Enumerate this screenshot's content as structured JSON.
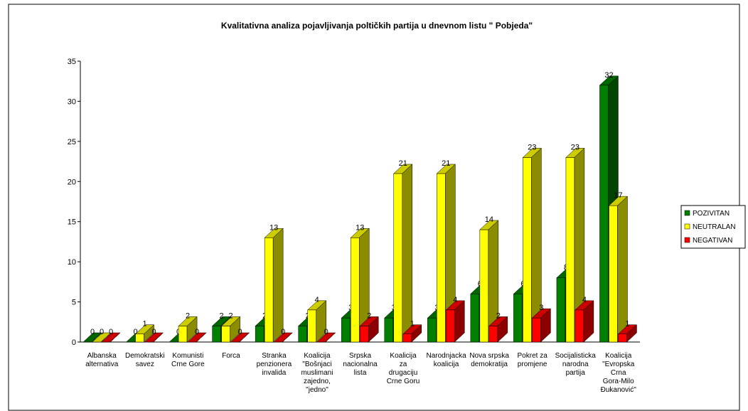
{
  "chart_data": {
    "type": "bar3d",
    "title": "Kvalitativna analiza pojavljivanja poltičkih partija u dnevnom listu \" Pobjeda\"",
    "categories": [
      "Albanska alternativa",
      "Demokratski savez",
      "Komunisti Crne Gore",
      "Forca",
      "Stranka penzionera invalida",
      "Koalicija \"Bošnjaci muslimani zajedno, \"jedno\"",
      "Srpska nacionalna lista",
      "Koalicija za drugaciju Crne Goru",
      "Narodnjacka koalicija",
      "Nova srpska demokratija",
      "Pokret za promjene",
      "Socijalisticka narodna partija",
      "Koalicija \"Evropska Crna Gora-Milo Đukanović\""
    ],
    "series": [
      {
        "name": "POZIVITAN",
        "color": "#008000",
        "values": [
          0,
          0,
          0,
          2,
          2,
          2,
          3,
          3,
          3,
          6,
          6,
          8,
          32
        ]
      },
      {
        "name": "NEUTRALAN",
        "color": "#ffff00",
        "values": [
          0,
          1,
          2,
          2,
          13,
          4,
          13,
          21,
          21,
          14,
          23,
          23,
          17
        ]
      },
      {
        "name": "NEGATIVAN",
        "color": "#ff0000",
        "values": [
          0,
          0,
          0,
          0,
          0,
          0,
          2,
          1,
          4,
          2,
          3,
          4,
          1
        ]
      }
    ],
    "ylim": [
      0,
      35
    ],
    "yticks": [
      0,
      5,
      10,
      15,
      20,
      25,
      30,
      35
    ],
    "legend": "right"
  }
}
